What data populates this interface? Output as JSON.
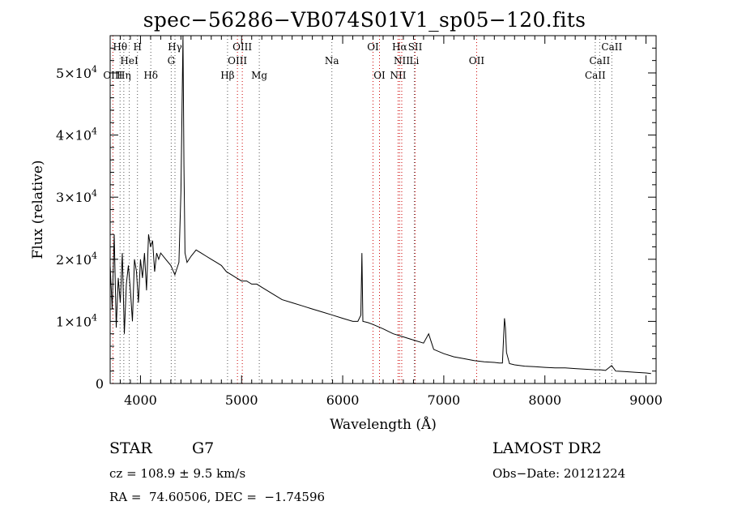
{
  "title": "spec−56286−VB074S01V1_sp05−120.fits",
  "meta": {
    "object_type": "STAR",
    "subclass": "G7",
    "survey": "LAMOST DR2",
    "redshift": "cz = 108.9 ± 9.5 km/s",
    "obs_date": "Obs−Date: 20121224",
    "coords": "RA =  74.60506, DEC =  −1.74596"
  },
  "chart_data": {
    "type": "line",
    "xlabel": "Wavelength (Å)",
    "ylabel": "Flux (relative)",
    "xlim": [
      3700,
      9100
    ],
    "ylim": [
      0,
      56000
    ],
    "grid": false,
    "x_ticks": [
      4000,
      5000,
      6000,
      7000,
      8000,
      9000
    ],
    "y_ticks": [
      {
        "value": 0,
        "label": "0"
      },
      {
        "value": 10000,
        "label": "1×10",
        "exp": "4"
      },
      {
        "value": 20000,
        "label": "2×10",
        "exp": "4"
      },
      {
        "value": 30000,
        "label": "3×10",
        "exp": "4"
      },
      {
        "value": 40000,
        "label": "4×10",
        "exp": "4"
      },
      {
        "value": 50000,
        "label": "5×10",
        "exp": "4"
      }
    ],
    "series": [
      {
        "x": [
          3700,
          3720,
          3740,
          3760,
          3780,
          3800,
          3820,
          3840,
          3860,
          3880,
          3900,
          3920,
          3940,
          3960,
          3980,
          4000,
          4020,
          4040,
          4060,
          4080,
          4100,
          4120,
          4140,
          4160,
          4180,
          4200,
          4250,
          4300,
          4340,
          4380,
          4400,
          4420,
          4430,
          4440,
          4460,
          4500,
          4550,
          4600,
          4650,
          4700,
          4750,
          4800,
          4850,
          4900,
          4950,
          5000,
          5050,
          5100,
          5150,
          5200,
          5300,
          5400,
          5500,
          5600,
          5700,
          5800,
          5900,
          6000,
          6100,
          6150,
          6180,
          6190,
          6200,
          6250,
          6300,
          6400,
          6500,
          6600,
          6700,
          6800,
          6850,
          6880,
          6900,
          7000,
          7100,
          7200,
          7300,
          7400,
          7500,
          7550,
          7580,
          7600,
          7610,
          7620,
          7650,
          7700,
          7800,
          7900,
          8000,
          8100,
          8200,
          8300,
          8400,
          8500,
          8550,
          8600,
          8660,
          8700,
          8800,
          8900,
          9000,
          9050
        ],
        "y": [
          19000,
          12000,
          24000,
          9000,
          17000,
          13000,
          21000,
          8000,
          16000,
          19000,
          15000,
          10000,
          20000,
          18000,
          13000,
          20000,
          17000,
          21000,
          15000,
          24000,
          22000,
          23000,
          18000,
          21000,
          20000,
          21000,
          20000,
          19000,
          17500,
          19500,
          31000,
          56000,
          35000,
          21000,
          19500,
          20500,
          21500,
          21000,
          20500,
          20000,
          19500,
          19000,
          18000,
          17500,
          17000,
          16500,
          16500,
          16000,
          16000,
          15500,
          14500,
          13500,
          13000,
          12500,
          12000,
          11500,
          11000,
          10500,
          10000,
          10000,
          11000,
          21000,
          10000,
          9800,
          9500,
          8800,
          8000,
          7500,
          7000,
          6500,
          8000,
          6500,
          5500,
          4800,
          4300,
          4000,
          3700,
          3500,
          3400,
          3300,
          3300,
          10500,
          9000,
          5000,
          3200,
          3000,
          2800,
          2700,
          2600,
          2500,
          2500,
          2400,
          2300,
          2200,
          2200,
          2100,
          2900,
          2000,
          1900,
          1800,
          1700,
          1600
        ]
      }
    ],
    "lines": [
      {
        "name": "Hθ",
        "wl": 3798,
        "row": 0,
        "color": "#555555"
      },
      {
        "name": "H",
        "wl": 3970,
        "row": 0,
        "color": "#555555"
      },
      {
        "name": "Hγ",
        "wl": 4341,
        "row": 0,
        "color": "#555555"
      },
      {
        "name": "OIII",
        "wl": 5007,
        "row": 0,
        "color": "#cc0000"
      },
      {
        "name": "OI",
        "wl": 6300,
        "row": 0,
        "color": "#cc0000"
      },
      {
        "name": "Hα",
        "wl": 6563,
        "row": 0,
        "color": "#cc0000"
      },
      {
        "name": "SII",
        "wl": 6717,
        "row": 0,
        "color": "#cc0000"
      },
      {
        "name": "CaII",
        "wl": 8662,
        "row": 0,
        "color": "#555555"
      },
      {
        "name": "HeI",
        "wl": 3889,
        "row": 1,
        "color": "#555555"
      },
      {
        "name": "G",
        "wl": 4304,
        "row": 1,
        "color": "#555555"
      },
      {
        "name": "OIII",
        "wl": 4959,
        "row": 1,
        "color": "#cc0000"
      },
      {
        "name": "Na",
        "wl": 5893,
        "row": 1,
        "color": "#555555"
      },
      {
        "name": "NII",
        "wl": 6584,
        "row": 1,
        "color": "#cc0000"
      },
      {
        "name": "Li",
        "wl": 6708,
        "row": 1,
        "color": "#555555"
      },
      {
        "name": "OII",
        "wl": 7325,
        "row": 1,
        "color": "#cc0000"
      },
      {
        "name": "CaII",
        "wl": 8542,
        "row": 1,
        "color": "#555555"
      },
      {
        "name": "OIII",
        "wl": 3727,
        "row": 2,
        "color": "#cc0000"
      },
      {
        "name": "Hη",
        "wl": 3835,
        "row": 2,
        "color": "#555555"
      },
      {
        "name": "Hδ",
        "wl": 4102,
        "row": 2,
        "color": "#555555"
      },
      {
        "name": "Hβ",
        "wl": 4861,
        "row": 2,
        "color": "#555555"
      },
      {
        "name": "Mg",
        "wl": 5175,
        "row": 2,
        "color": "#555555"
      },
      {
        "name": "OI",
        "wl": 6364,
        "row": 2,
        "color": "#cc0000"
      },
      {
        "name": "NII",
        "wl": 6548,
        "row": 2,
        "color": "#cc0000"
      },
      {
        "name": "CaII",
        "wl": 8498,
        "row": 2,
        "color": "#555555"
      }
    ]
  }
}
